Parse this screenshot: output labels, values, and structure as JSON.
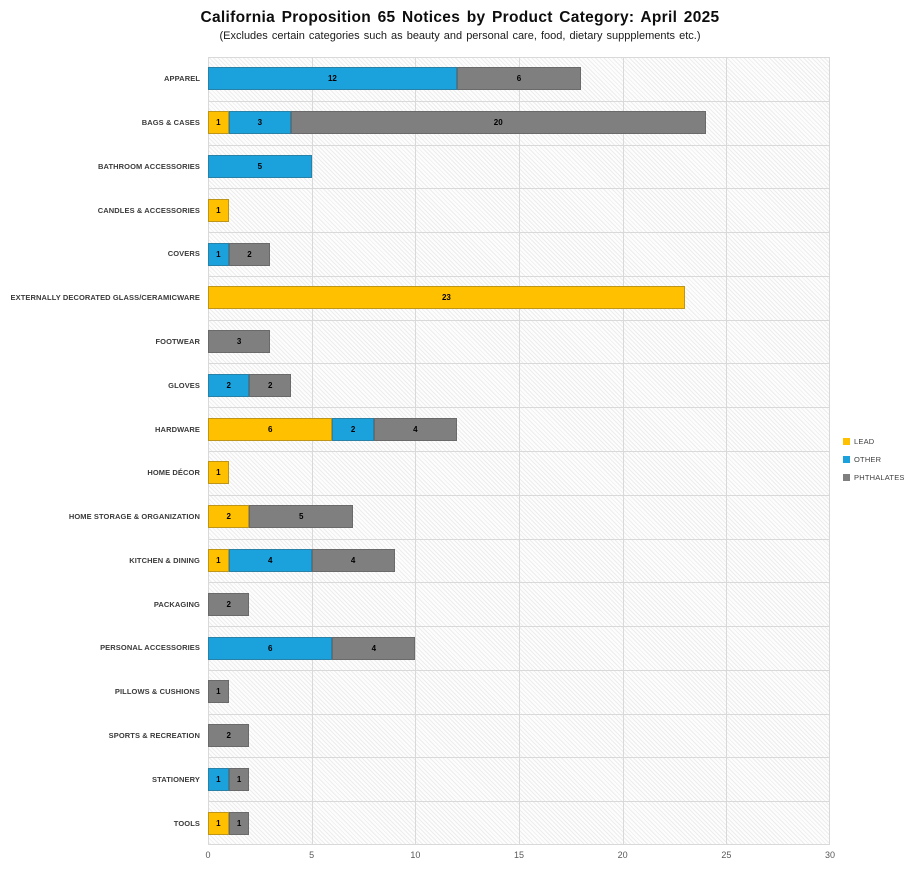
{
  "chart_data": {
    "type": "bar",
    "orientation": "horizontal",
    "stacked": true,
    "title": "California Proposition 65 Notices by Product Category: April 2025",
    "subtitle": "(Excludes certain categories such as beauty and personal care, food, dietary suppplements etc.)",
    "categories": [
      "APPAREL",
      "BAGS & CASES",
      "BATHROOM ACCESSORIES",
      "CANDLES & ACCESSORIES",
      "COVERS",
      "EXTERNALLY DECORATED GLASS/CERAMICWARE",
      "FOOTWEAR",
      "GLOVES",
      "HARDWARE",
      "HOME DÉCOR",
      "HOME STORAGE & ORGANIZATION",
      "KITCHEN & DINING",
      "PACKAGING",
      "PERSONAL ACCESSORIES",
      "PILLOWS & CUSHIONS",
      "SPORTS & RECREATION",
      "STATIONERY",
      "TOOLS"
    ],
    "series": [
      {
        "name": "LEAD",
        "color": "#FFC000",
        "values": [
          0,
          1,
          0,
          1,
          0,
          23,
          0,
          0,
          6,
          1,
          2,
          1,
          0,
          0,
          0,
          0,
          0,
          1
        ]
      },
      {
        "name": "OTHER",
        "color": "#1BA1DC",
        "values": [
          12,
          3,
          5,
          0,
          1,
          0,
          0,
          2,
          2,
          0,
          0,
          4,
          0,
          6,
          0,
          0,
          1,
          0
        ]
      },
      {
        "name": "PHTHALATES",
        "color": "#7F7F7F",
        "values": [
          6,
          20,
          0,
          0,
          2,
          0,
          3,
          2,
          4,
          0,
          5,
          4,
          2,
          4,
          1,
          2,
          1,
          1
        ]
      }
    ],
    "xlim": [
      0,
      30
    ],
    "xticks": [
      0,
      5,
      10,
      15,
      20,
      25,
      30
    ],
    "grid": true,
    "legend_position": "right",
    "colors": {
      "gridline": "#d9d9d9",
      "tick_text": "#595959",
      "category_text": "#3b3b3b",
      "value_text": "#000000"
    }
  }
}
